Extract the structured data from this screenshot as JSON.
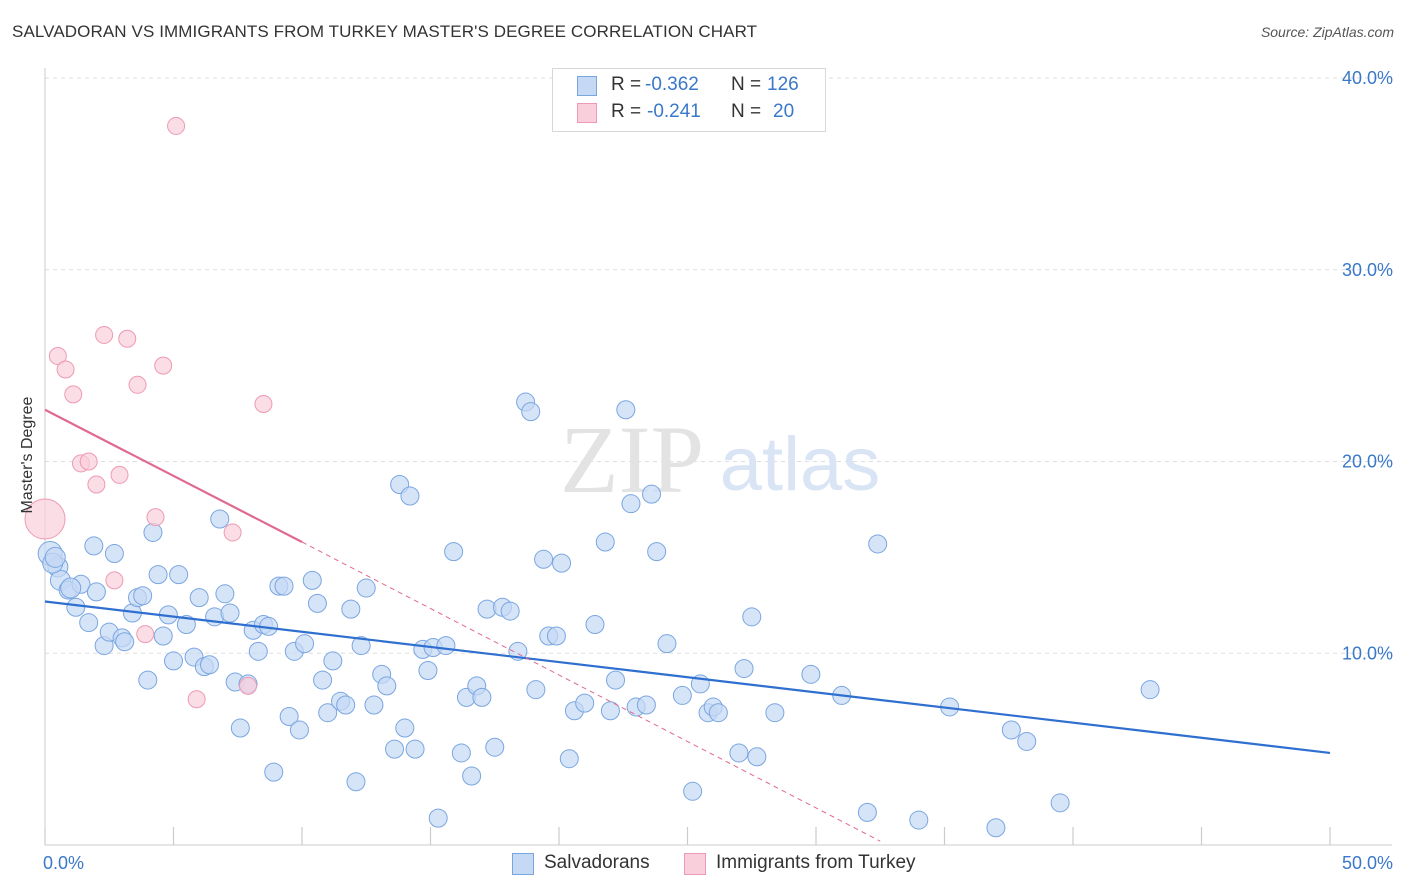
{
  "title": "SALVADORAN VS IMMIGRANTS FROM TURKEY MASTER'S DEGREE CORRELATION CHART",
  "source": "Source: ZipAtlas.com",
  "watermark": {
    "zip": "ZIP",
    "atlas": "atlas"
  },
  "colors": {
    "blue_fill": "#c5d9f5",
    "blue_stroke": "#7aa6e0",
    "blue_line": "#2f6fd0",
    "pink_fill": "#f9cfdc",
    "pink_stroke": "#ee9ab4",
    "pink_line": "#e0698f",
    "axis_text": "#3a78c9",
    "grid": "#dddddd"
  },
  "legend": {
    "r_label": "R =",
    "n_label": "N =",
    "rows": [
      {
        "r": "-0.362",
        "n": "126"
      },
      {
        "r": "-0.241",
        "n": "20"
      }
    ]
  },
  "bottom_legend": [
    "Salvadorans",
    "Immigrants from Turkey"
  ],
  "chart_data": {
    "type": "scatter",
    "title": "SALVADORAN VS IMMIGRANTS FROM TURKEY MASTER'S DEGREE CORRELATION CHART",
    "xlabel": "",
    "ylabel": "Master's Degree",
    "xlim": [
      0,
      50
    ],
    "ylim": [
      0,
      40
    ],
    "x_tick_labels": [
      "0.0%",
      "50.0%"
    ],
    "y_tick_labels": [
      "10.0%",
      "20.0%",
      "30.0%",
      "40.0%"
    ],
    "y_ticks": [
      10,
      20,
      30,
      40
    ],
    "series": [
      {
        "name": "Salvadorans",
        "color": "blue",
        "R": -0.362,
        "N": 126,
        "trend": {
          "x": [
            0,
            50
          ],
          "y": [
            12.7,
            4.8
          ]
        },
        "points": [
          [
            0.2,
            15.2
          ],
          [
            0.5,
            14.5
          ],
          [
            0.6,
            13.8
          ],
          [
            0.9,
            13.3
          ],
          [
            1.2,
            12.4
          ],
          [
            1.4,
            13.6
          ],
          [
            1.7,
            11.6
          ],
          [
            1.9,
            15.6
          ],
          [
            2.0,
            13.2
          ],
          [
            2.3,
            10.4
          ],
          [
            2.5,
            11.1
          ],
          [
            2.7,
            15.2
          ],
          [
            3.0,
            10.8
          ],
          [
            3.1,
            10.6
          ],
          [
            3.4,
            12.1
          ],
          [
            3.6,
            12.9
          ],
          [
            3.8,
            13.0
          ],
          [
            4.0,
            8.6
          ],
          [
            4.2,
            16.3
          ],
          [
            4.4,
            14.1
          ],
          [
            4.6,
            10.9
          ],
          [
            4.8,
            12.0
          ],
          [
            5.0,
            9.6
          ],
          [
            5.2,
            14.1
          ],
          [
            5.5,
            11.5
          ],
          [
            5.8,
            9.8
          ],
          [
            6.0,
            12.9
          ],
          [
            6.2,
            9.3
          ],
          [
            6.4,
            9.4
          ],
          [
            6.6,
            11.9
          ],
          [
            6.8,
            17.0
          ],
          [
            7.0,
            13.1
          ],
          [
            7.2,
            12.1
          ],
          [
            7.4,
            8.5
          ],
          [
            7.6,
            6.1
          ],
          [
            7.9,
            8.4
          ],
          [
            8.1,
            11.2
          ],
          [
            8.3,
            10.1
          ],
          [
            8.5,
            11.5
          ],
          [
            8.7,
            11.4
          ],
          [
            8.9,
            3.8
          ],
          [
            9.1,
            13.5
          ],
          [
            9.3,
            13.5
          ],
          [
            9.5,
            6.7
          ],
          [
            9.7,
            10.1
          ],
          [
            9.9,
            6.0
          ],
          [
            10.1,
            10.5
          ],
          [
            10.4,
            13.8
          ],
          [
            10.6,
            12.6
          ],
          [
            10.8,
            8.6
          ],
          [
            11.0,
            6.9
          ],
          [
            11.2,
            9.6
          ],
          [
            11.5,
            7.5
          ],
          [
            11.7,
            7.3
          ],
          [
            11.9,
            12.3
          ],
          [
            12.1,
            3.3
          ],
          [
            12.3,
            10.4
          ],
          [
            12.5,
            13.4
          ],
          [
            12.8,
            7.3
          ],
          [
            13.1,
            8.9
          ],
          [
            13.3,
            8.3
          ],
          [
            13.6,
            5.0
          ],
          [
            13.8,
            18.8
          ],
          [
            14.0,
            6.1
          ],
          [
            14.2,
            18.2
          ],
          [
            14.4,
            5.0
          ],
          [
            14.7,
            10.2
          ],
          [
            14.9,
            9.1
          ],
          [
            15.1,
            10.3
          ],
          [
            15.3,
            1.4
          ],
          [
            15.6,
            10.4
          ],
          [
            15.9,
            15.3
          ],
          [
            16.2,
            4.8
          ],
          [
            16.4,
            7.7
          ],
          [
            16.6,
            3.6
          ],
          [
            16.8,
            8.3
          ],
          [
            17.0,
            7.7
          ],
          [
            17.2,
            12.3
          ],
          [
            17.5,
            5.1
          ],
          [
            17.8,
            12.4
          ],
          [
            18.1,
            12.2
          ],
          [
            18.4,
            10.1
          ],
          [
            18.7,
            23.1
          ],
          [
            18.9,
            22.6
          ],
          [
            19.1,
            8.1
          ],
          [
            19.4,
            14.9
          ],
          [
            19.6,
            10.9
          ],
          [
            19.9,
            10.9
          ],
          [
            20.1,
            14.7
          ],
          [
            20.4,
            4.5
          ],
          [
            20.6,
            7.0
          ],
          [
            21.0,
            7.4
          ],
          [
            21.4,
            11.5
          ],
          [
            21.8,
            15.8
          ],
          [
            22.0,
            7.0
          ],
          [
            22.2,
            8.6
          ],
          [
            22.6,
            22.7
          ],
          [
            22.8,
            17.8
          ],
          [
            23.0,
            7.2
          ],
          [
            23.4,
            7.3
          ],
          [
            23.6,
            18.3
          ],
          [
            23.8,
            15.3
          ],
          [
            24.2,
            10.5
          ],
          [
            24.8,
            7.8
          ],
          [
            25.2,
            2.8
          ],
          [
            25.5,
            8.4
          ],
          [
            25.8,
            6.9
          ],
          [
            26.0,
            7.2
          ],
          [
            26.2,
            6.9
          ],
          [
            27.0,
            4.8
          ],
          [
            27.2,
            9.2
          ],
          [
            27.5,
            11.9
          ],
          [
            27.7,
            4.6
          ],
          [
            28.4,
            6.9
          ],
          [
            29.8,
            8.9
          ],
          [
            31.0,
            7.8
          ],
          [
            32.0,
            1.7
          ],
          [
            32.4,
            15.7
          ],
          [
            34.0,
            1.3
          ],
          [
            35.2,
            7.2
          ],
          [
            37.0,
            0.9
          ],
          [
            37.6,
            6.0
          ],
          [
            38.2,
            5.4
          ],
          [
            39.5,
            2.2
          ],
          [
            43.0,
            8.1
          ],
          [
            0.3,
            14.7
          ],
          [
            0.4,
            15.0
          ],
          [
            1.0,
            13.4
          ]
        ]
      },
      {
        "name": "Immigrants from Turkey",
        "color": "pink",
        "R": -0.241,
        "N": 20,
        "trend": {
          "x": [
            0,
            10
          ],
          "y": [
            22.7,
            15.8
          ]
        },
        "trend_extension": {
          "x": [
            10,
            32.5
          ],
          "y": [
            15.8,
            0.2
          ]
        },
        "points": [
          [
            0.0,
            17.0
          ],
          [
            0.5,
            25.5
          ],
          [
            0.8,
            24.8
          ],
          [
            1.1,
            23.5
          ],
          [
            1.4,
            19.9
          ],
          [
            1.7,
            20.0
          ],
          [
            2.0,
            18.8
          ],
          [
            2.3,
            26.6
          ],
          [
            2.7,
            13.8
          ],
          [
            2.9,
            19.3
          ],
          [
            3.2,
            26.4
          ],
          [
            3.6,
            24.0
          ],
          [
            3.9,
            11.0
          ],
          [
            4.3,
            17.1
          ],
          [
            4.6,
            25.0
          ],
          [
            5.1,
            37.5
          ],
          [
            5.9,
            7.6
          ],
          [
            7.3,
            16.3
          ],
          [
            7.9,
            8.3
          ],
          [
            8.5,
            23.0
          ]
        ]
      }
    ]
  }
}
